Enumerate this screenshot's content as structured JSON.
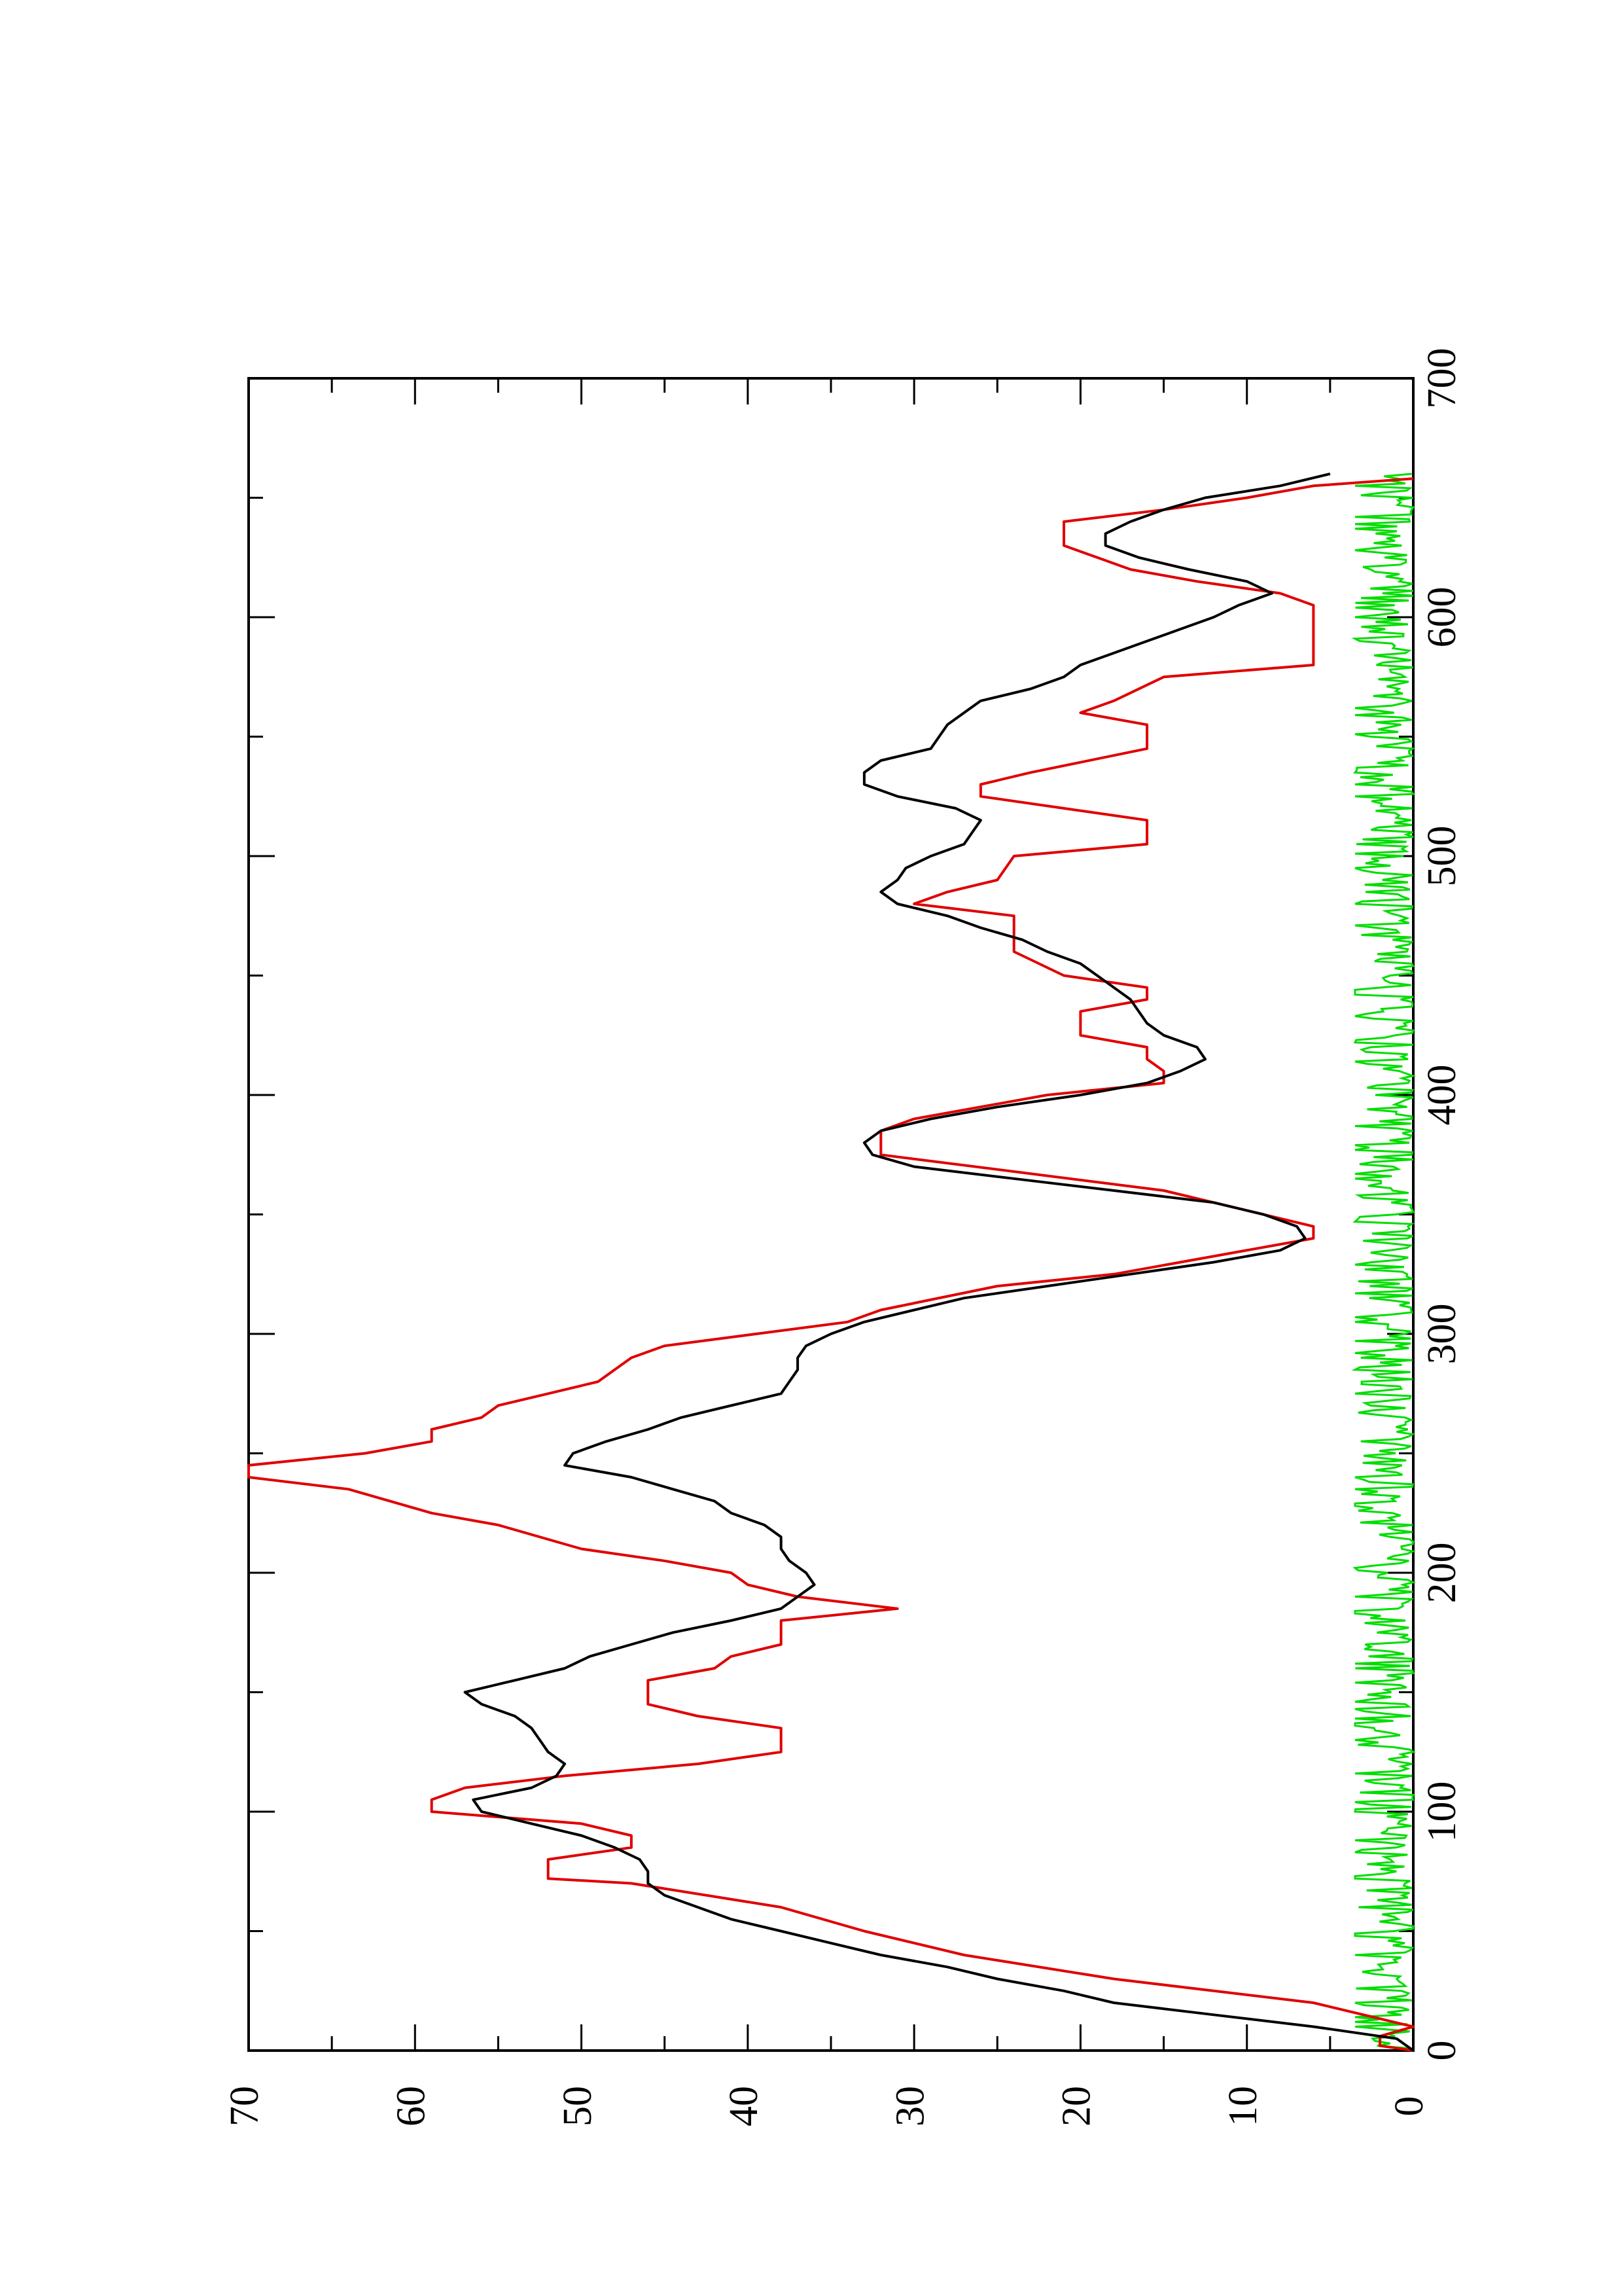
{
  "chart_data": {
    "type": "line",
    "title": "",
    "xlabel": "",
    "ylabel": "",
    "xlim": [
      0,
      700
    ],
    "ylim": [
      0,
      70
    ],
    "orientation": "rotated-90-counterclockwise",
    "x_ticks": [
      0,
      100,
      200,
      300,
      400,
      500,
      600,
      700
    ],
    "x_tick_labels": [
      "0",
      "100",
      "200",
      "300",
      "400",
      "500",
      "600",
      "700"
    ],
    "y_ticks": [
      0,
      10,
      20,
      30,
      40,
      50,
      60,
      70
    ],
    "y_tick_labels": [
      "0",
      "10",
      "20",
      "30",
      "40",
      "50",
      "60",
      "70"
    ],
    "grid": false,
    "colors": {
      "black": "#000000",
      "red": "#e00000",
      "green": "#00dd00",
      "axis": "#000000"
    },
    "series": [
      {
        "color": "#000000",
        "points": [
          [
            0,
            0
          ],
          [
            5,
            1
          ],
          [
            10,
            6
          ],
          [
            15,
            12
          ],
          [
            20,
            18
          ],
          [
            25,
            21
          ],
          [
            30,
            25
          ],
          [
            35,
            28
          ],
          [
            40,
            32
          ],
          [
            45,
            35
          ],
          [
            50,
            38
          ],
          [
            55,
            41
          ],
          [
            60,
            43
          ],
          [
            65,
            45
          ],
          [
            70,
            46
          ],
          [
            75,
            46
          ],
          [
            80,
            46.5
          ],
          [
            85,
            48
          ],
          [
            90,
            50
          ],
          [
            95,
            53
          ],
          [
            100,
            56
          ],
          [
            105,
            56.5
          ],
          [
            110,
            53
          ],
          [
            115,
            51.5
          ],
          [
            120,
            51
          ],
          [
            125,
            52
          ],
          [
            130,
            52.5
          ],
          [
            135,
            53
          ],
          [
            140,
            54
          ],
          [
            145,
            56
          ],
          [
            150,
            57
          ],
          [
            155,
            54
          ],
          [
            160,
            51
          ],
          [
            165,
            49.5
          ],
          [
            170,
            47
          ],
          [
            175,
            44.5
          ],
          [
            180,
            41
          ],
          [
            185,
            38
          ],
          [
            190,
            37
          ],
          [
            195,
            36
          ],
          [
            200,
            36.5
          ],
          [
            205,
            37.5
          ],
          [
            210,
            38
          ],
          [
            215,
            38
          ],
          [
            220,
            39
          ],
          [
            225,
            41
          ],
          [
            230,
            42
          ],
          [
            235,
            44.5
          ],
          [
            240,
            47
          ],
          [
            245,
            51
          ],
          [
            250,
            50.5
          ],
          [
            255,
            48.5
          ],
          [
            260,
            46
          ],
          [
            265,
            44
          ],
          [
            270,
            41
          ],
          [
            275,
            38
          ],
          [
            280,
            37.5
          ],
          [
            285,
            37
          ],
          [
            290,
            37
          ],
          [
            295,
            36.5
          ],
          [
            300,
            35
          ],
          [
            305,
            33
          ],
          [
            310,
            30
          ],
          [
            315,
            27
          ],
          [
            320,
            22
          ],
          [
            325,
            17
          ],
          [
            330,
            12
          ],
          [
            335,
            8
          ],
          [
            340,
            6.5
          ],
          [
            345,
            7
          ],
          [
            350,
            9
          ],
          [
            355,
            12
          ],
          [
            360,
            18
          ],
          [
            365,
            24
          ],
          [
            370,
            30
          ],
          [
            375,
            32.5
          ],
          [
            380,
            33
          ],
          [
            385,
            32
          ],
          [
            390,
            29
          ],
          [
            395,
            25
          ],
          [
            400,
            20
          ],
          [
            405,
            16
          ],
          [
            410,
            14
          ],
          [
            415,
            12.5
          ],
          [
            420,
            13
          ],
          [
            425,
            15
          ],
          [
            430,
            16
          ],
          [
            435,
            16.5
          ],
          [
            440,
            17
          ],
          [
            445,
            18
          ],
          [
            450,
            19
          ],
          [
            455,
            20
          ],
          [
            460,
            22
          ],
          [
            465,
            23.5
          ],
          [
            470,
            26
          ],
          [
            475,
            28
          ],
          [
            480,
            31
          ],
          [
            485,
            32
          ],
          [
            490,
            31
          ],
          [
            495,
            30.5
          ],
          [
            500,
            29
          ],
          [
            505,
            27
          ],
          [
            510,
            26.5
          ],
          [
            515,
            26
          ],
          [
            520,
            27.5
          ],
          [
            525,
            31
          ],
          [
            530,
            33
          ],
          [
            535,
            33
          ],
          [
            540,
            32
          ],
          [
            545,
            29
          ],
          [
            550,
            28.5
          ],
          [
            555,
            28
          ],
          [
            560,
            27
          ],
          [
            565,
            26
          ],
          [
            570,
            23
          ],
          [
            575,
            21
          ],
          [
            580,
            20
          ],
          [
            585,
            18
          ],
          [
            590,
            16
          ],
          [
            595,
            14
          ],
          [
            600,
            12
          ],
          [
            605,
            10.5
          ],
          [
            610,
            8.5
          ],
          [
            615,
            10
          ],
          [
            620,
            13.5
          ],
          [
            625,
            16.5
          ],
          [
            630,
            18.5
          ],
          [
            635,
            18.5
          ],
          [
            640,
            17
          ],
          [
            645,
            15
          ],
          [
            650,
            12.5
          ],
          [
            655,
            8
          ],
          [
            660,
            5
          ]
        ]
      },
      {
        "color": "#e00000",
        "points": [
          [
            0,
            0
          ],
          [
            2,
            2
          ],
          [
            6,
            2
          ],
          [
            10,
            0
          ],
          [
            20,
            6
          ],
          [
            30,
            18
          ],
          [
            40,
            27
          ],
          [
            50,
            33
          ],
          [
            60,
            38
          ],
          [
            70,
            47
          ],
          [
            72,
            52
          ],
          [
            80,
            52
          ],
          [
            85,
            47
          ],
          [
            90,
            47
          ],
          [
            95,
            50
          ],
          [
            100,
            59
          ],
          [
            105,
            59
          ],
          [
            110,
            57
          ],
          [
            115,
            51
          ],
          [
            120,
            43
          ],
          [
            125,
            38
          ],
          [
            135,
            38
          ],
          [
            140,
            43
          ],
          [
            145,
            46
          ],
          [
            155,
            46
          ],
          [
            160,
            42
          ],
          [
            165,
            41
          ],
          [
            170,
            38
          ],
          [
            180,
            38
          ],
          [
            185,
            31
          ],
          [
            190,
            37
          ],
          [
            195,
            40
          ],
          [
            200,
            41
          ],
          [
            205,
            45
          ],
          [
            210,
            50
          ],
          [
            220,
            55
          ],
          [
            225,
            59
          ],
          [
            235,
            64
          ],
          [
            240,
            70
          ],
          [
            245,
            70
          ],
          [
            250,
            63
          ],
          [
            255,
            59
          ],
          [
            260,
            59
          ],
          [
            265,
            56
          ],
          [
            270,
            55
          ],
          [
            275,
            52
          ],
          [
            280,
            49
          ],
          [
            290,
            47
          ],
          [
            295,
            45
          ],
          [
            305,
            34
          ],
          [
            310,
            32
          ],
          [
            320,
            25
          ],
          [
            325,
            18
          ],
          [
            340,
            6
          ],
          [
            345,
            6
          ],
          [
            360,
            15
          ],
          [
            375,
            32
          ],
          [
            385,
            32
          ],
          [
            390,
            30
          ],
          [
            400,
            22
          ],
          [
            405,
            15
          ],
          [
            410,
            15
          ],
          [
            415,
            16
          ],
          [
            420,
            16
          ],
          [
            425,
            20
          ],
          [
            435,
            20
          ],
          [
            440,
            16
          ],
          [
            445,
            16
          ],
          [
            450,
            21
          ],
          [
            460,
            24
          ],
          [
            475,
            24
          ],
          [
            480,
            30
          ],
          [
            485,
            28
          ],
          [
            490,
            25
          ],
          [
            500,
            24
          ],
          [
            505,
            16
          ],
          [
            515,
            16
          ],
          [
            520,
            21
          ],
          [
            525,
            26
          ],
          [
            530,
            26
          ],
          [
            535,
            23
          ],
          [
            545,
            16
          ],
          [
            555,
            16
          ],
          [
            560,
            20
          ],
          [
            565,
            18
          ],
          [
            575,
            15
          ],
          [
            580,
            6
          ],
          [
            605,
            6
          ],
          [
            610,
            8
          ],
          [
            615,
            13
          ],
          [
            620,
            17
          ],
          [
            625,
            19
          ],
          [
            630,
            21
          ],
          [
            640,
            21
          ],
          [
            645,
            15
          ],
          [
            650,
            10
          ],
          [
            655,
            6
          ],
          [
            658,
            0
          ]
        ]
      },
      {
        "color": "#00dd00",
        "noise_amplitude_max": 3.5,
        "mean_level": 1
      }
    ]
  }
}
